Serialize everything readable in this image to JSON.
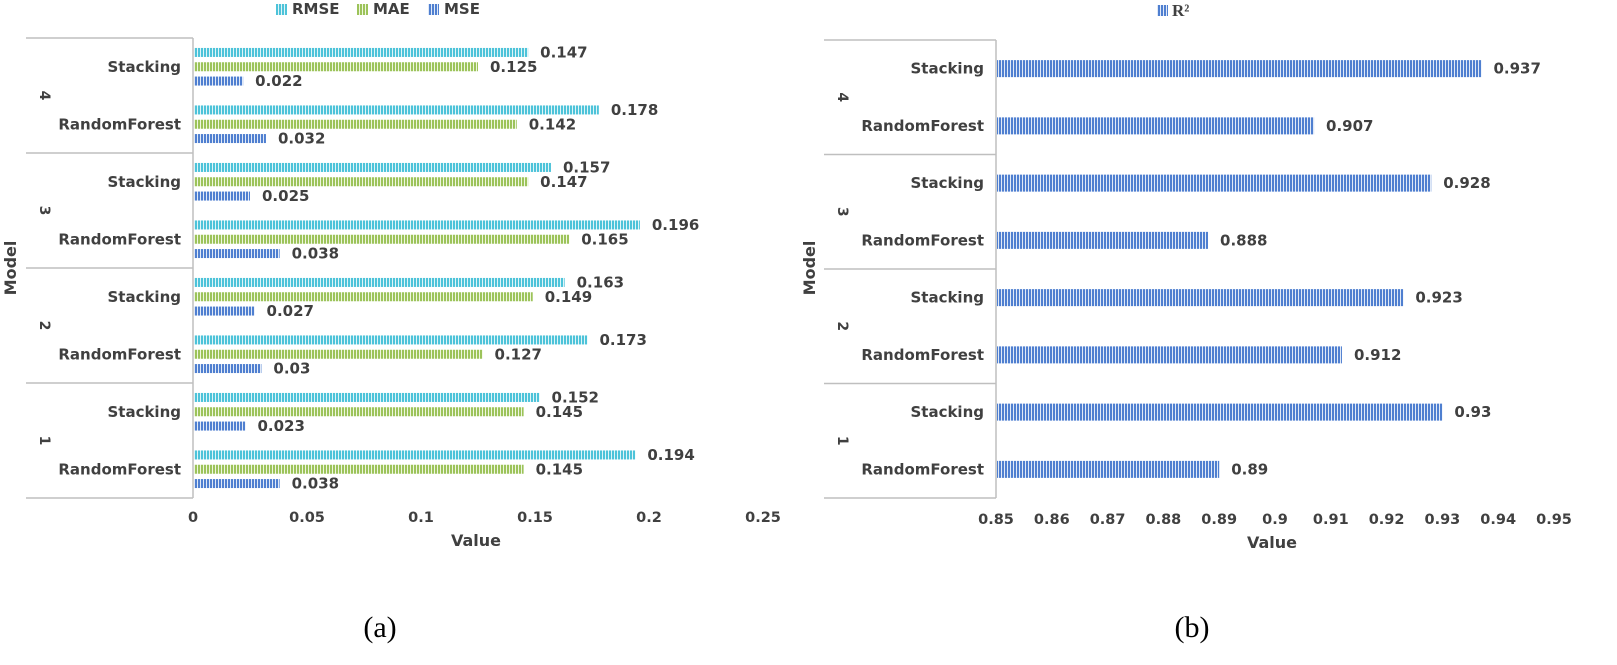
{
  "colors": {
    "rmse": "#4dc3d9",
    "mae": "#9cc35a",
    "mse": "#4f7fd0",
    "r2": "#4f7fd0",
    "text": "#404040",
    "axis": "#bfbfbf"
  },
  "chart_data": [
    {
      "id": "a",
      "type": "bar",
      "orientation": "horizontal",
      "subfigure_label": "(a)",
      "xlabel": "Value",
      "ylabel": "Model",
      "xlim": [
        0,
        0.25
      ],
      "xticks": [
        "0",
        "0.05",
        "0.1",
        "0.15",
        "0.2",
        "0.25"
      ],
      "legend": [
        "RMSE",
        "MAE",
        "MSE"
      ],
      "groups": [
        {
          "group": "4",
          "categories": [
            {
              "label": "Stacking",
              "values": {
                "RMSE": 0.147,
                "MAE": 0.125,
                "MSE": 0.022
              },
              "texts": {
                "RMSE": "0.147",
                "MAE": "0.125",
                "MSE": "0.022"
              }
            },
            {
              "label": "RandomForest",
              "values": {
                "RMSE": 0.178,
                "MAE": 0.142,
                "MSE": 0.032
              },
              "texts": {
                "RMSE": "0.178",
                "MAE": "0.142",
                "MSE": "0.032"
              }
            }
          ]
        },
        {
          "group": "3",
          "categories": [
            {
              "label": "Stacking",
              "values": {
                "RMSE": 0.157,
                "MAE": 0.147,
                "MSE": 0.025
              },
              "texts": {
                "RMSE": "0.157",
                "MAE": "0.147",
                "MSE": "0.025"
              }
            },
            {
              "label": "RandomForest",
              "values": {
                "RMSE": 0.196,
                "MAE": 0.165,
                "MSE": 0.038
              },
              "texts": {
                "RMSE": "0.196",
                "MAE": "0.165",
                "MSE": "0.038"
              }
            }
          ]
        },
        {
          "group": "2",
          "categories": [
            {
              "label": "Stacking",
              "values": {
                "RMSE": 0.163,
                "MAE": 0.149,
                "MSE": 0.027
              },
              "texts": {
                "RMSE": "0.163",
                "MAE": "0.149",
                "MSE": "0.027"
              }
            },
            {
              "label": "RandomForest",
              "values": {
                "RMSE": 0.173,
                "MAE": 0.127,
                "MSE": 0.03
              },
              "texts": {
                "RMSE": "0.173",
                "MAE": "0.127",
                "MSE": "0.03"
              }
            }
          ]
        },
        {
          "group": "1",
          "categories": [
            {
              "label": "Stacking",
              "values": {
                "RMSE": 0.152,
                "MAE": 0.145,
                "MSE": 0.023
              },
              "texts": {
                "RMSE": "0.152",
                "MAE": "0.145",
                "MSE": "0.023"
              }
            },
            {
              "label": "RandomForest",
              "values": {
                "RMSE": 0.194,
                "MAE": 0.145,
                "MSE": 0.038
              },
              "texts": {
                "RMSE": "0.194",
                "MAE": "0.145",
                "MSE": "0.038"
              }
            }
          ]
        }
      ]
    },
    {
      "id": "b",
      "type": "bar",
      "orientation": "horizontal",
      "subfigure_label": "(b)",
      "xlabel": "Value",
      "ylabel": "Model",
      "xlim": [
        0.85,
        0.95
      ],
      "xticks": [
        "0.85",
        "0.86",
        "0.87",
        "0.88",
        "0.89",
        "0.9",
        "0.91",
        "0.92",
        "0.93",
        "0.94",
        "0.95"
      ],
      "legend": [
        "R²"
      ],
      "groups": [
        {
          "group": "4",
          "categories": [
            {
              "label": "Stacking",
              "values": {
                "R2": 0.937
              },
              "texts": {
                "R2": "0.937"
              }
            },
            {
              "label": "RandomForest",
              "values": {
                "R2": 0.907
              },
              "texts": {
                "R2": "0.907"
              }
            }
          ]
        },
        {
          "group": "3",
          "categories": [
            {
              "label": "Stacking",
              "values": {
                "R2": 0.928
              },
              "texts": {
                "R2": "0.928"
              }
            },
            {
              "label": "RandomForest",
              "values": {
                "R2": 0.888
              },
              "texts": {
                "R2": "0.888"
              }
            }
          ]
        },
        {
          "group": "2",
          "categories": [
            {
              "label": "Stacking",
              "values": {
                "R2": 0.923
              },
              "texts": {
                "R2": "0.923"
              }
            },
            {
              "label": "RandomForest",
              "values": {
                "R2": 0.912
              },
              "texts": {
                "R2": "0.912"
              }
            }
          ]
        },
        {
          "group": "1",
          "categories": [
            {
              "label": "Stacking",
              "values": {
                "R2": 0.93
              },
              "texts": {
                "R2": "0.93"
              }
            },
            {
              "label": "RandomForest",
              "values": {
                "R2": 0.89
              },
              "texts": {
                "R2": "0.89"
              }
            }
          ]
        }
      ]
    }
  ]
}
